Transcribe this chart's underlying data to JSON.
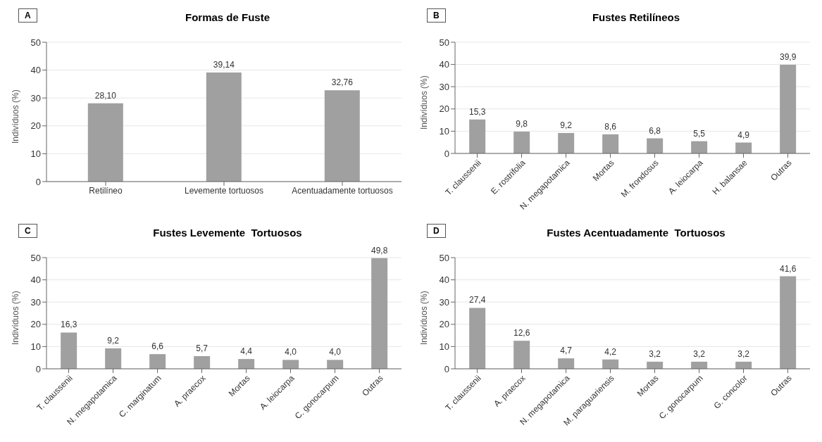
{
  "chart_data": [
    {
      "type": "bar",
      "title": "Formas de Fuste",
      "ylabel": "Indivíduos (%)",
      "annotations": [
        "A"
      ],
      "categories": [
        "Retilíneo",
        "Levemente tortuosos",
        "Acentuadamente tortuosos"
      ],
      "values": [
        28.1,
        39.14,
        32.76
      ],
      "value_labels": [
        "28,10",
        "39,14",
        "32,76"
      ],
      "color": "#a0a0a0",
      "ylim": [
        0,
        50
      ],
      "yticks": [
        0,
        10,
        20,
        30,
        40,
        50
      ],
      "grid": "y"
    },
    {
      "type": "bar",
      "title": "Fustes Retilíneos",
      "ylabel": "Indivíduos (%)",
      "annotations": [
        "B"
      ],
      "categories": [
        "T. claussenii",
        "E. rostrifolia",
        "N. megapotamica",
        "Mortas",
        "M. frondosus",
        "A. leiocarpa",
        "H. balansae",
        "Outras"
      ],
      "values": [
        15.3,
        9.8,
        9.2,
        8.6,
        6.8,
        5.5,
        4.9,
        39.9
      ],
      "value_labels": [
        "15,3",
        "9,8",
        "9,2",
        "8,6",
        "6,8",
        "5,5",
        "4,9",
        "39,9"
      ],
      "color": "#a0a0a0",
      "ylim": [
        0,
        50
      ],
      "yticks": [
        0,
        10,
        20,
        30,
        40,
        50
      ],
      "grid": "y"
    },
    {
      "type": "bar",
      "title": "Fustes Levemente  Tortuosos",
      "ylabel": "Indivíduos (%)",
      "annotations": [
        "C"
      ],
      "categories": [
        "T. claussenii",
        "N. megapotamica",
        "C. marginatum",
        "A. praecox",
        "Mortas",
        "A. leiocarpa",
        "C. gonocarpum",
        "Outras"
      ],
      "values": [
        16.3,
        9.2,
        6.6,
        5.7,
        4.4,
        4.0,
        4.0,
        49.8
      ],
      "value_labels": [
        "16,3",
        "9,2",
        "6,6",
        "5,7",
        "4,4",
        "4,0",
        "4,0",
        "49,8"
      ],
      "color": "#a0a0a0",
      "ylim": [
        0,
        50
      ],
      "yticks": [
        0,
        10,
        20,
        30,
        40,
        50
      ],
      "grid": "y"
    },
    {
      "type": "bar",
      "title": "Fustes Acentuadamente  Tortuosos",
      "ylabel": "Indivíduos (%)",
      "annotations": [
        "D"
      ],
      "categories": [
        "T. claussenii",
        "A. praecox",
        "N. megapotamica",
        "M. paraguariensis",
        "Mortas",
        "C. gonocarpum",
        "G. concolor",
        "Outras"
      ],
      "values": [
        27.4,
        12.6,
        4.7,
        4.2,
        3.2,
        3.2,
        3.2,
        41.6
      ],
      "value_labels": [
        "27,4",
        "12,6",
        "4,7",
        "4,2",
        "3,2",
        "3,2",
        "3,2",
        "41,6"
      ],
      "color": "#a0a0a0",
      "ylim": [
        0,
        50
      ],
      "yticks": [
        0,
        10,
        20,
        30,
        40,
        50
      ],
      "grid": "y"
    }
  ]
}
